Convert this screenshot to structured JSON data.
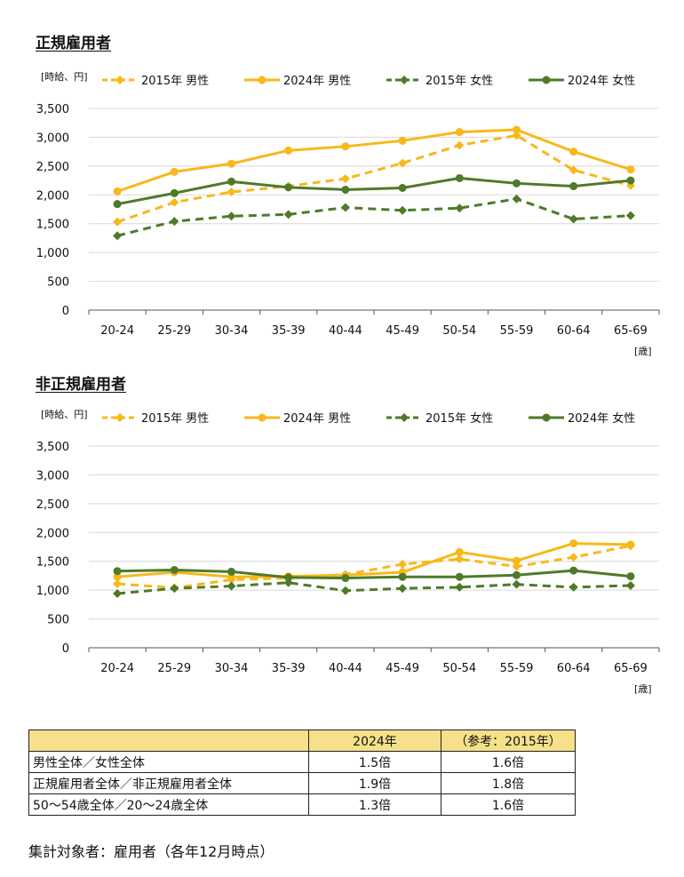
{
  "colors": {
    "male": "#f7b81a",
    "female": "#4e7a2a",
    "grid": "#d9d9d9",
    "table_header": "#f6e08a"
  },
  "chart_data": [
    {
      "type": "line",
      "title": "正規雇用者",
      "ylabel": "[時給、円]",
      "xlabel": "[歳]",
      "categories": [
        "20-24",
        "25-29",
        "30-34",
        "35-39",
        "40-44",
        "45-49",
        "50-54",
        "55-59",
        "60-64",
        "65-69"
      ],
      "ylim": [
        0,
        3500
      ],
      "yticks": [
        "0",
        "500",
        "1,000",
        "1,500",
        "2,000",
        "2,500",
        "3,000",
        "3,500"
      ],
      "grid": true,
      "legend_position": "top",
      "series": [
        {
          "name": "2015年 男性",
          "color": "male",
          "dashed": true,
          "marker": "diamond",
          "values": [
            1530,
            1870,
            2050,
            2150,
            2280,
            2550,
            2860,
            3030,
            2430,
            2160
          ]
        },
        {
          "name": "2024年 男性",
          "color": "male",
          "dashed": false,
          "marker": "circle",
          "values": [
            2060,
            2400,
            2540,
            2770,
            2840,
            2940,
            3090,
            3130,
            2750,
            2440
          ]
        },
        {
          "name": "2015年 女性",
          "color": "female",
          "dashed": true,
          "marker": "diamond",
          "values": [
            1290,
            1540,
            1630,
            1660,
            1780,
            1730,
            1770,
            1930,
            1580,
            1640
          ]
        },
        {
          "name": "2024年 女性",
          "color": "female",
          "dashed": false,
          "marker": "circle",
          "values": [
            1840,
            2030,
            2230,
            2130,
            2090,
            2120,
            2290,
            2200,
            2150,
            2250
          ]
        }
      ]
    },
    {
      "type": "line",
      "title": "非正規雇用者",
      "ylabel": "[時給、円]",
      "xlabel": "[歳]",
      "categories": [
        "20-24",
        "25-29",
        "30-34",
        "35-39",
        "40-44",
        "45-49",
        "50-54",
        "55-59",
        "60-64",
        "65-69"
      ],
      "ylim": [
        0,
        3500
      ],
      "yticks": [
        "0",
        "500",
        "1,000",
        "1,500",
        "2,000",
        "2,500",
        "3,000",
        "3,500"
      ],
      "grid": true,
      "legend_position": "top",
      "series": [
        {
          "name": "2015年 男性",
          "color": "male",
          "dashed": true,
          "marker": "diamond",
          "values": [
            1110,
            1040,
            1180,
            1210,
            1270,
            1450,
            1540,
            1410,
            1570,
            1770
          ]
        },
        {
          "name": "2024年 男性",
          "color": "male",
          "dashed": false,
          "marker": "circle",
          "values": [
            1230,
            1310,
            1230,
            1240,
            1260,
            1310,
            1660,
            1510,
            1810,
            1790
          ]
        },
        {
          "name": "2015年 女性",
          "color": "female",
          "dashed": true,
          "marker": "diamond",
          "values": [
            940,
            1030,
            1070,
            1130,
            990,
            1030,
            1050,
            1100,
            1050,
            1080
          ]
        },
        {
          "name": "2024年 女性",
          "color": "female",
          "dashed": false,
          "marker": "circle",
          "values": [
            1330,
            1350,
            1320,
            1220,
            1210,
            1230,
            1230,
            1260,
            1340,
            1240
          ]
        }
      ]
    }
  ],
  "table": {
    "headers": [
      "",
      "2024年",
      "（参考：2015年）"
    ],
    "rows": [
      [
        "男性全体／女性全体",
        "1.5倍",
        "1.6倍"
      ],
      [
        "正規雇用者全体／非正規雇用者全体",
        "1.9倍",
        "1.8倍"
      ],
      [
        "50～54歳全体／20～24歳全体",
        "1.3倍",
        "1.6倍"
      ]
    ]
  },
  "footnote": "集計対象者：雇用者（各年12月時点）"
}
